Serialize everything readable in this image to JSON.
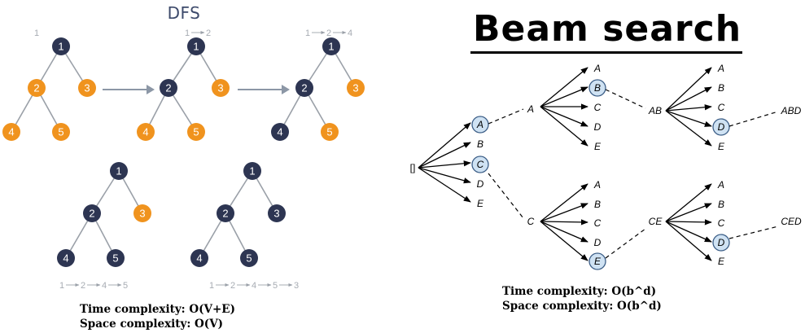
{
  "dfs": {
    "title": "DFS",
    "colors": {
      "visited": "#2d3552",
      "unvisited": "#f0931e",
      "edge": "#9aa0a8",
      "label": "#a7acb3",
      "arrow": "#8c97a6"
    },
    "node_labels": [
      "1",
      "2",
      "3",
      "4",
      "5"
    ],
    "step_sequences": [
      [
        "1"
      ],
      [
        "1",
        "2"
      ],
      [
        "1",
        "2",
        "4"
      ],
      [
        "1",
        "2",
        "4",
        "5"
      ],
      [
        "1",
        "2",
        "4",
        "5",
        "3"
      ]
    ],
    "complexity": {
      "time": "Time complexity: O(V+E)",
      "space": "Space complexity: O(V)"
    }
  },
  "beam": {
    "title": "Beam search",
    "colors": {
      "highlight_fill": "#cfe2f3",
      "highlight_stroke": "#3b5d86",
      "line": "#000000"
    },
    "root_label": "[]",
    "letters": [
      "A",
      "B",
      "C",
      "D",
      "E"
    ],
    "prefixes": [
      "A",
      "C",
      "AB",
      "CE"
    ],
    "results": [
      "ABD",
      "CED"
    ],
    "complexity": {
      "time": "Time complexity: O(b^d)",
      "space": "Space complexity: O(b^d)"
    }
  }
}
